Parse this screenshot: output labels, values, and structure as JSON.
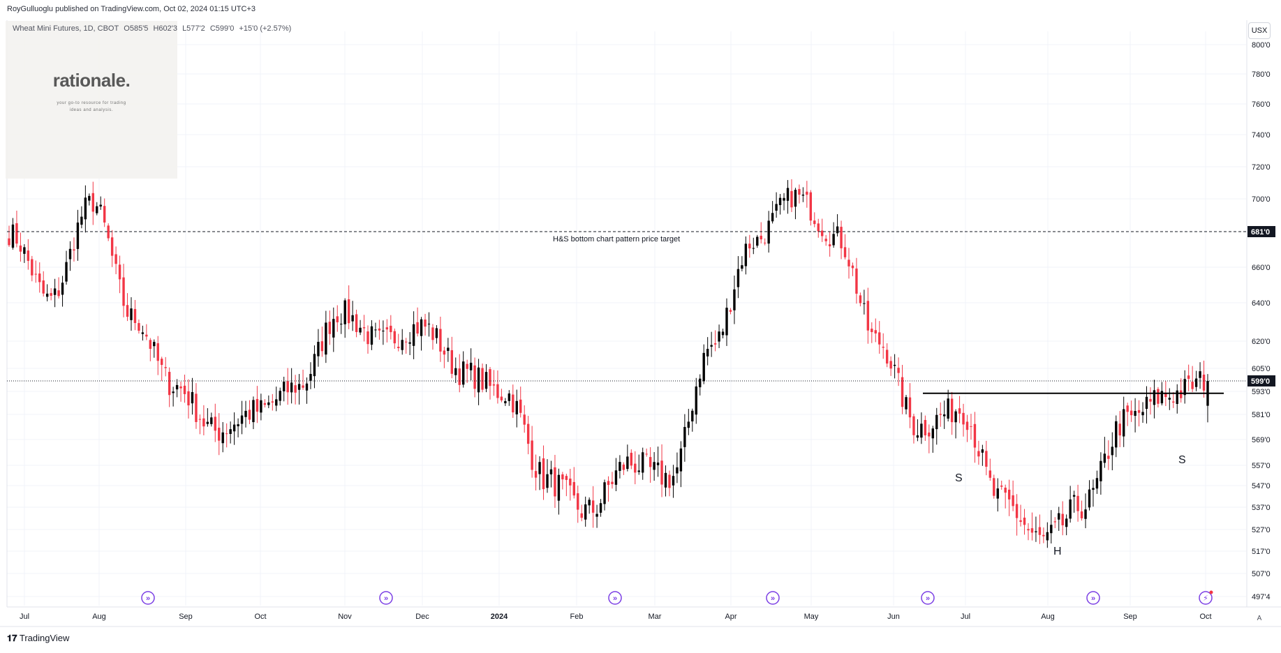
{
  "header": {
    "published": "RoyGulluoglu published on TradingView.com, Oct 02, 2024 01:15 UTC+3",
    "symbol": "Wheat Mini Futures, 1D, CBOT",
    "open": "O585'5",
    "high": "H602'3",
    "low": "L577'2",
    "close": "C599'0",
    "change": "+15'0 (+2.57%)"
  },
  "logo": {
    "title": "rationale.",
    "subtitle_line1": "your go-to resource for trading",
    "subtitle_line2": "ideas and analysis."
  },
  "toolbar": {
    "currency": "USX",
    "auto": "A"
  },
  "footer": {
    "brand": "TradingView",
    "brand_icon": "tradingview-logo-icon"
  },
  "colors": {
    "up": "#000000",
    "down": "#f23645",
    "price_label_bg": "#131722",
    "event_icon": "#7b3fe4",
    "grid": "#f0f3fa"
  },
  "chart_data": {
    "type": "candlestick",
    "title": "Wheat Mini Futures, 1D, CBOT",
    "x_tick_labels": [
      "Jul",
      "Aug",
      "Sep",
      "Oct",
      "Nov",
      "Dec",
      "2024",
      "Feb",
      "Mar",
      "Apr",
      "May",
      "Jun",
      "Jul",
      "Aug",
      "Sep",
      "Oct"
    ],
    "y_tick_labels": [
      "800'0",
      "780'0",
      "760'0",
      "740'0",
      "720'0",
      "700'0",
      "660'0",
      "640'0",
      "620'0",
      "605'0",
      "593'0",
      "581'0",
      "569'0",
      "557'0",
      "547'0",
      "537'0",
      "527'0",
      "517'0",
      "507'0",
      "497'4"
    ],
    "y_range": [
      494,
      806
    ],
    "last_price_label": "599'0",
    "level_label": "681'0",
    "annotations": [
      {
        "text": "H&S bottom chart pattern price target",
        "price": 681
      },
      {
        "text": "S",
        "role": "left shoulder"
      },
      {
        "text": "H",
        "role": "head"
      },
      {
        "text": "S",
        "role": "right shoulder"
      }
    ],
    "neckline_price": 592,
    "monthly_anchors": [
      [
        "Jun",
        680
      ],
      [
        "Jul",
        642
      ],
      [
        "Aug",
        698
      ],
      [
        "Aug2",
        632
      ],
      [
        "Sep",
        596
      ],
      [
        "Oct",
        573
      ],
      [
        "Nov",
        583
      ],
      [
        "Dec",
        596
      ],
      [
        "Dec2",
        635
      ],
      [
        "Jan",
        620
      ],
      [
        "Jan2",
        628
      ],
      [
        "Feb",
        603
      ],
      [
        "Feb2",
        592
      ],
      [
        "Mar",
        550
      ],
      [
        "Mar2",
        535
      ],
      [
        "Apr",
        558
      ],
      [
        "Apr2",
        551
      ],
      [
        "May",
        617
      ],
      [
        "May2",
        675
      ],
      [
        "May3",
        702
      ],
      [
        "Jun2",
        678
      ],
      [
        "Jun3",
        620
      ],
      [
        "Jun4",
        575
      ],
      [
        "Jul2",
        584
      ],
      [
        "Jul3",
        540
      ],
      [
        "Aug3",
        522
      ],
      [
        "Aug4",
        538
      ],
      [
        "Sep2",
        578
      ],
      [
        "Sep3",
        591
      ],
      [
        "Oct2",
        599
      ]
    ]
  }
}
